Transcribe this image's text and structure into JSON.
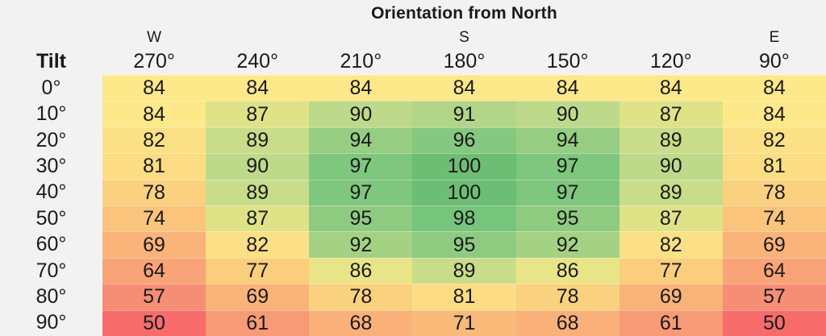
{
  "header": {
    "title": "Orientation from North",
    "corner_label": "Tilt",
    "directions": [
      {
        "label": "W",
        "column_index": 0
      },
      {
        "label": "S",
        "column_index": 3
      },
      {
        "label": "E",
        "column_index": 6
      }
    ]
  },
  "chart_data": {
    "type": "heatmap",
    "title": "Orientation from North",
    "xlabel": "Orientation from North",
    "ylabel": "Tilt",
    "columns": [
      "270°",
      "240°",
      "210°",
      "180°",
      "150°",
      "120°",
      "90°"
    ],
    "column_direction_labels": {
      "270°": "W",
      "180°": "S",
      "90°": "E"
    },
    "rows": [
      "0°",
      "10°",
      "20°",
      "30°",
      "40°",
      "50°",
      "60°",
      "70°",
      "80°",
      "90°"
    ],
    "values": [
      [
        84,
        84,
        84,
        84,
        84,
        84,
        84
      ],
      [
        84,
        87,
        90,
        91,
        90,
        87,
        84
      ],
      [
        82,
        89,
        94,
        96,
        94,
        89,
        82
      ],
      [
        81,
        90,
        97,
        100,
        97,
        90,
        81
      ],
      [
        78,
        89,
        97,
        100,
        97,
        89,
        78
      ],
      [
        74,
        87,
        95,
        98,
        95,
        87,
        74
      ],
      [
        69,
        82,
        92,
        95,
        92,
        82,
        69
      ],
      [
        64,
        77,
        86,
        89,
        86,
        77,
        64
      ],
      [
        57,
        69,
        78,
        81,
        78,
        69,
        57
      ],
      [
        50,
        61,
        68,
        71,
        68,
        61,
        50
      ]
    ],
    "value_range": [
      50,
      100
    ],
    "colormap": "red-yellow-green",
    "grid": false,
    "legend": "none"
  },
  "colors": {
    "background": "#F2F2F2",
    "text": "#1A1A1A",
    "ramp": [
      {
        "value": 50,
        "color": "#F76B6B"
      },
      {
        "value": 57,
        "color": "#F68E75"
      },
      {
        "value": 69,
        "color": "#F9B379"
      },
      {
        "value": 78,
        "color": "#FAD17E"
      },
      {
        "value": 84,
        "color": "#FDE88A"
      },
      {
        "value": 87,
        "color": "#DFE287"
      },
      {
        "value": 90,
        "color": "#BED98A"
      },
      {
        "value": 92,
        "color": "#A5D185"
      },
      {
        "value": 98,
        "color": "#77C47D"
      },
      {
        "value": 100,
        "color": "#6DBD74"
      }
    ]
  }
}
